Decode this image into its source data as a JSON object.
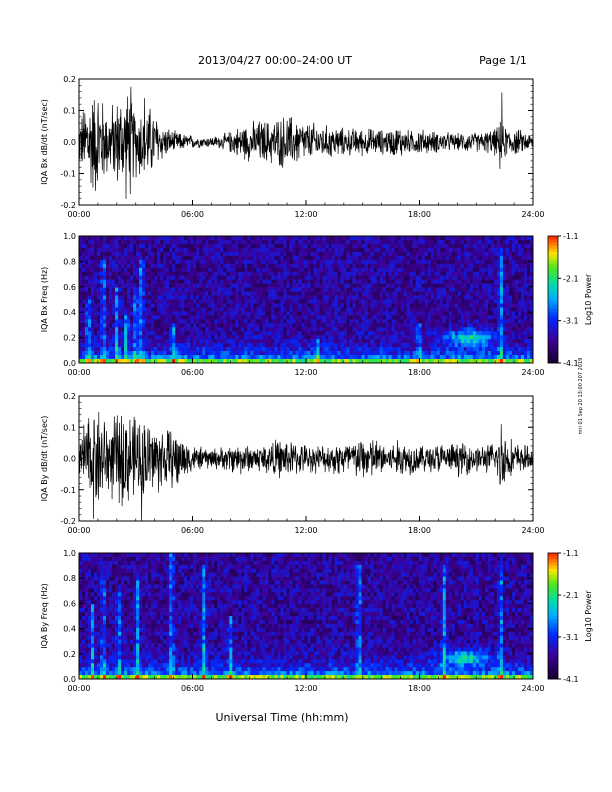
{
  "header": {
    "title": "2013/04/27  00:00–24:00 UT",
    "page": "Page 1/1"
  },
  "side_note": "mri 01 Sep 20 13:00 207 2019",
  "xlabel": "Universal Time (hh:mm)",
  "colorbar": {
    "label": "Log10 Power",
    "ticks": [
      "-1.1",
      "-2.1",
      "-3.1",
      "-4.1"
    ]
  },
  "chart_data": [
    {
      "type": "line",
      "ylabel": "IQA Bx dB/dt (nT/sec)",
      "ylim": [
        -0.2,
        0.2
      ],
      "yticks": [
        "0.2",
        "0.1",
        "0.0",
        "-0.1",
        "-0.2"
      ],
      "xlim": [
        "00:00",
        "24:00"
      ],
      "xticks": [
        "00:00",
        "06:00",
        "12:00",
        "18:00",
        "24:00"
      ],
      "envelope": {
        "hours": [
          0,
          0.5,
          1,
          1.5,
          2,
          2.5,
          3,
          3.5,
          4,
          4.5,
          5,
          5.5,
          6,
          6.5,
          7,
          7.5,
          8,
          8.5,
          9,
          9.5,
          10,
          10.5,
          11,
          11.5,
          12,
          12.5,
          13,
          13.5,
          14,
          14.5,
          15,
          15.5,
          16,
          16.5,
          17,
          17.5,
          18,
          18.5,
          19,
          19.5,
          20,
          20.5,
          21,
          21.5,
          22,
          22.5,
          23,
          23.5,
          24
        ],
        "amplitude": [
          0.08,
          0.18,
          0.2,
          0.12,
          0.16,
          0.2,
          0.13,
          0.15,
          0.11,
          0.06,
          0.04,
          0.03,
          0.025,
          0.02,
          0.02,
          0.025,
          0.04,
          0.06,
          0.07,
          0.08,
          0.08,
          0.09,
          0.1,
          0.09,
          0.07,
          0.07,
          0.06,
          0.06,
          0.05,
          0.05,
          0.05,
          0.05,
          0.045,
          0.05,
          0.06,
          0.04,
          0.05,
          0.04,
          0.04,
          0.035,
          0.03,
          0.04,
          0.035,
          0.04,
          0.05,
          0.06,
          0.05,
          0.04,
          0.03
        ]
      },
      "spikes": [
        {
          "hour": 0.5,
          "max": 0.21
        },
        {
          "hour": 1.0,
          "max": 0.21
        },
        {
          "hour": 2.7,
          "max": 0.21
        },
        {
          "hour": 3.5,
          "max": 0.19
        },
        {
          "hour": 22.3,
          "max": 0.21
        }
      ]
    },
    {
      "type": "heatmap",
      "ylabel": "IQA Bx Freq (Hz)",
      "ylim": [
        0.0,
        1.0
      ],
      "yticks": [
        "1.0",
        "0.8",
        "0.6",
        "0.4",
        "0.2",
        "0.0"
      ],
      "xlim": [
        "00:00",
        "24:00"
      ],
      "xticks": [
        "00:00",
        "06:00",
        "12:00",
        "18:00",
        "24:00"
      ],
      "zlim": [
        -4.1,
        -1.1
      ],
      "bands": [
        {
          "hour": 0.5,
          "top": 0.5
        },
        {
          "hour": 1.3,
          "top": 0.8
        },
        {
          "hour": 2.0,
          "top": 0.6
        },
        {
          "hour": 2.5,
          "top": 0.4
        },
        {
          "hour": 3.0,
          "top": 0.6
        },
        {
          "hour": 3.3,
          "top": 0.8
        },
        {
          "hour": 5.0,
          "top": 0.3
        },
        {
          "hour": 12.6,
          "top": 0.2
        },
        {
          "hour": 18.0,
          "top": 0.3
        },
        {
          "hour": 22.3,
          "top": 0.9
        }
      ],
      "blob": {
        "hour": 20.6,
        "freq": 0.2
      }
    },
    {
      "type": "line",
      "ylabel": "IQA By dB/dt (nT/sec)",
      "ylim": [
        -0.2,
        0.2
      ],
      "yticks": [
        "0.2",
        "0.1",
        "0.0",
        "-0.1",
        "-0.2"
      ],
      "xlim": [
        "00:00",
        "24:00"
      ],
      "xticks": [
        "00:00",
        "06:00",
        "12:00",
        "18:00",
        "24:00"
      ],
      "envelope": {
        "hours": [
          0,
          0.5,
          1,
          1.5,
          2,
          2.5,
          3,
          3.5,
          4,
          4.5,
          5,
          5.5,
          6,
          6.5,
          7,
          7.5,
          8,
          8.5,
          9,
          9.5,
          10,
          10.5,
          11,
          11.5,
          12,
          12.5,
          13,
          13.5,
          14,
          14.5,
          15,
          15.5,
          16,
          16.5,
          17,
          17.5,
          18,
          18.5,
          19,
          19.5,
          20,
          20.5,
          21,
          21.5,
          22,
          22.5,
          23,
          23.5,
          24
        ],
        "amplitude": [
          0.1,
          0.16,
          0.2,
          0.14,
          0.16,
          0.18,
          0.15,
          0.16,
          0.13,
          0.12,
          0.1,
          0.08,
          0.05,
          0.04,
          0.04,
          0.04,
          0.05,
          0.06,
          0.05,
          0.05,
          0.06,
          0.07,
          0.07,
          0.06,
          0.05,
          0.05,
          0.05,
          0.06,
          0.07,
          0.07,
          0.08,
          0.08,
          0.06,
          0.06,
          0.07,
          0.06,
          0.05,
          0.05,
          0.06,
          0.05,
          0.06,
          0.06,
          0.05,
          0.05,
          0.06,
          0.1,
          0.06,
          0.05,
          0.04
        ]
      },
      "spikes": [
        {
          "hour": 0.8,
          "max": 0.21
        },
        {
          "hour": 2.4,
          "max": 0.21
        },
        {
          "hour": 3.3,
          "max": 0.21
        },
        {
          "hour": 5.2,
          "max": 0.16
        },
        {
          "hour": 22.3,
          "max": 0.21
        }
      ]
    },
    {
      "type": "heatmap",
      "ylabel": "IQA By Freq (Hz)",
      "ylim": [
        0.0,
        1.0
      ],
      "yticks": [
        "1.0",
        "0.8",
        "0.6",
        "0.4",
        "0.2",
        "0.0"
      ],
      "xlim": [
        "00:00",
        "24:00"
      ],
      "xticks": [
        "00:00",
        "06:00",
        "12:00",
        "18:00",
        "24:00"
      ],
      "zlim": [
        -4.1,
        -1.1
      ],
      "bands": [
        {
          "hour": 0.7,
          "top": 0.6
        },
        {
          "hour": 1.3,
          "top": 0.8
        },
        {
          "hour": 2.1,
          "top": 0.7
        },
        {
          "hour": 3.1,
          "top": 0.8
        },
        {
          "hour": 4.9,
          "top": 1.0
        },
        {
          "hour": 6.6,
          "top": 0.9
        },
        {
          "hour": 8.0,
          "top": 0.5
        },
        {
          "hour": 14.8,
          "top": 0.9
        },
        {
          "hour": 19.3,
          "top": 0.9
        },
        {
          "hour": 22.3,
          "top": 0.9
        }
      ],
      "blob": {
        "hour": 20.4,
        "freq": 0.17
      }
    }
  ]
}
